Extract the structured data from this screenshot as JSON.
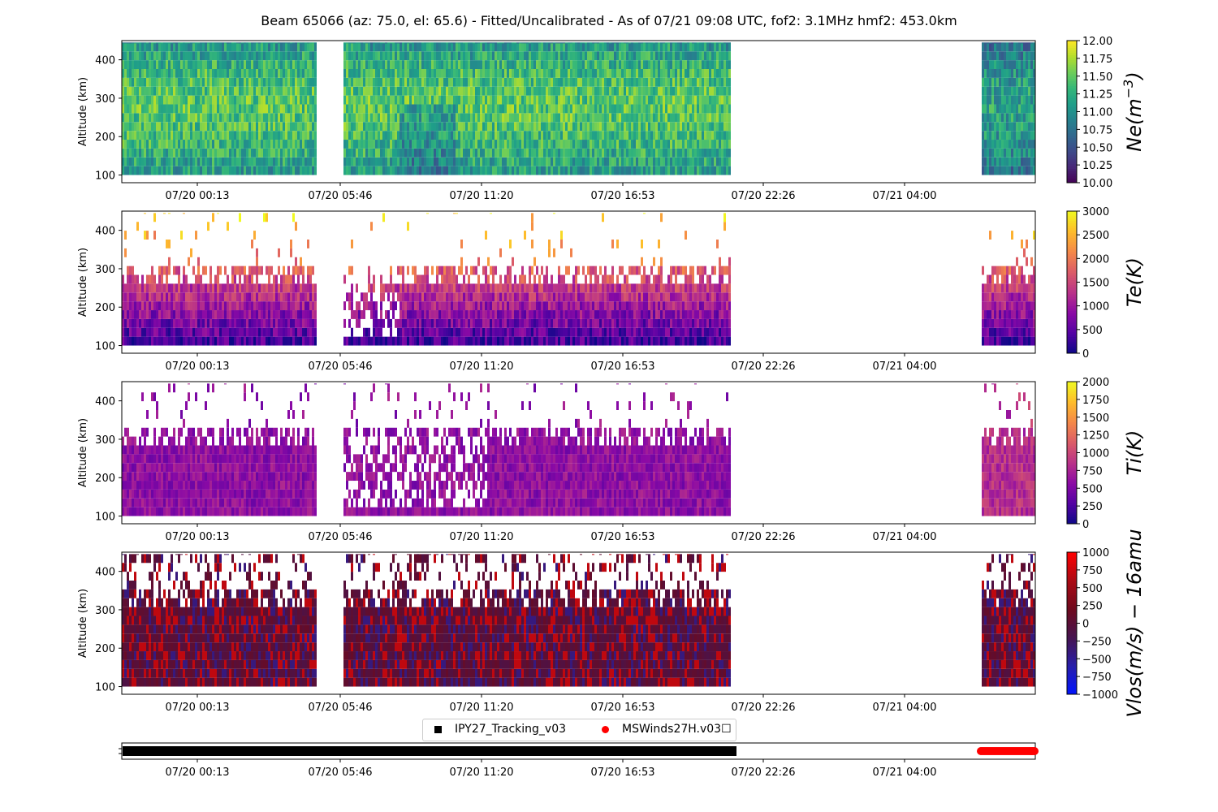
{
  "title": "Beam 65066 (az: 75.0, el: 65.6) - Fitted/Uncalibrated - As of 07/21 09:08 UTC, fof2: 3.1MHz  hmf2: 453.0km",
  "chart_data": [
    {
      "type": "heatmap",
      "ylabel": "Altitude (km)",
      "ylim": [
        80,
        450
      ],
      "yticks": [
        100,
        200,
        300,
        400
      ],
      "xticks": [
        "07/20 00:13",
        "07/20 05:46",
        "07/20 11:20",
        "07/20 16:53",
        "07/20 22:26",
        "07/21 04:00"
      ],
      "colorbar": {
        "label": "Ne(m^-3)",
        "colormap": "viridis",
        "range": [
          10.0,
          12.0
        ],
        "ticks": [
          "10.00",
          "10.25",
          "10.50",
          "10.75",
          "11.00",
          "11.25",
          "11.50",
          "11.75",
          "12.00"
        ]
      }
    },
    {
      "type": "heatmap",
      "ylabel": "Altitude (km)",
      "ylim": [
        80,
        450
      ],
      "yticks": [
        100,
        200,
        300,
        400
      ],
      "xticks": [
        "07/20 00:13",
        "07/20 05:46",
        "07/20 11:20",
        "07/20 16:53",
        "07/20 22:26",
        "07/21 04:00"
      ],
      "colorbar": {
        "label": "Te(K)",
        "colormap": "plasma",
        "range": [
          0,
          3000
        ],
        "ticks": [
          "0",
          "500",
          "1000",
          "1500",
          "2000",
          "2500",
          "3000"
        ]
      }
    },
    {
      "type": "heatmap",
      "ylabel": "Altitude (km)",
      "ylim": [
        80,
        450
      ],
      "yticks": [
        100,
        200,
        300,
        400
      ],
      "xticks": [
        "07/20 00:13",
        "07/20 05:46",
        "07/20 11:20",
        "07/20 16:53",
        "07/20 22:26",
        "07/21 04:00"
      ],
      "colorbar": {
        "label": "Ti(K)",
        "colormap": "plasma",
        "range": [
          0,
          2000
        ],
        "ticks": [
          "0",
          "250",
          "500",
          "750",
          "1000",
          "1250",
          "1500",
          "1750",
          "2000"
        ]
      }
    },
    {
      "type": "heatmap",
      "ylabel": "Altitude (km)",
      "ylim": [
        80,
        450
      ],
      "yticks": [
        100,
        200,
        300,
        400
      ],
      "xticks": [
        "07/20 00:13",
        "07/20 05:46",
        "07/20 11:20",
        "07/20 16:53",
        "07/20 22:26",
        "07/21 04:00"
      ],
      "colorbar": {
        "label": "Vlos(m/s) − 16amu",
        "colormap": "blue-darkred-red",
        "range": [
          -1000,
          1000
        ],
        "ticks": [
          "−1000",
          "−750",
          "−500",
          "−250",
          "0",
          "250",
          "500",
          "750",
          "1000"
        ]
      }
    },
    {
      "type": "scatter",
      "xticks": [
        "07/20 00:13",
        "07/20 05:46",
        "07/20 11:20",
        "07/20 16:53",
        "07/20 22:26",
        "07/21 04:00"
      ],
      "series": [
        {
          "name": "IPY27_Tracking_v03",
          "marker": "square",
          "color": "#000000",
          "x_range": [
            "07/19 21:20",
            "07/20 20:40"
          ]
        },
        {
          "name": "MSWinds27H.v03☐",
          "marker": "circle",
          "color": "#ff0000",
          "x_range": [
            "07/21 06:30",
            "07/21 08:40"
          ]
        }
      ]
    }
  ]
}
